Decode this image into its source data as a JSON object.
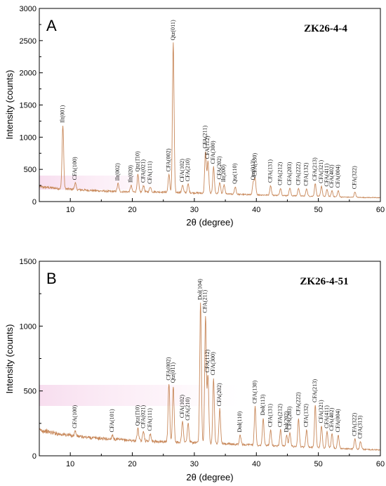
{
  "chart_data": [
    {
      "type": "line",
      "panel_label": "A",
      "sample": "ZK26-4-4",
      "xlabel": "2θ (degree)",
      "ylabel": "Intensity (counts)",
      "xlim": [
        5,
        60
      ],
      "ylim": [
        0,
        3000
      ],
      "x_ticks": [
        10,
        20,
        30,
        40,
        50,
        60
      ],
      "y_ticks": [
        0,
        500,
        1000,
        1500,
        2000,
        2500,
        3000
      ],
      "grid": false,
      "legend": "none",
      "line_color": "#c8885a",
      "baseline": [
        [
          5,
          230
        ],
        [
          8,
          205
        ],
        [
          12,
          180
        ],
        [
          16,
          160
        ],
        [
          20,
          150
        ],
        [
          24,
          150
        ],
        [
          28,
          140
        ],
        [
          32,
          130
        ],
        [
          36,
          115
        ],
        [
          40,
          105
        ],
        [
          44,
          95
        ],
        [
          48,
          85
        ],
        [
          52,
          75
        ],
        [
          56,
          65
        ],
        [
          60,
          60
        ]
      ],
      "peaks": [
        {
          "x": 8.8,
          "y": 1180,
          "label": "Ilt(001)"
        },
        {
          "x": 10.8,
          "y": 290,
          "label": "CFA(100)"
        },
        {
          "x": 17.7,
          "y": 280,
          "label": "Ilt(002)"
        },
        {
          "x": 19.8,
          "y": 250,
          "label": "Ilt(020)"
        },
        {
          "x": 20.9,
          "y": 420,
          "label": "Qtz(1̄10)"
        },
        {
          "x": 21.8,
          "y": 250,
          "label": "CFA(021)"
        },
        {
          "x": 22.9,
          "y": 230,
          "label": "CFA(111)"
        },
        {
          "x": 25.9,
          "y": 420,
          "label": "CFA(002)"
        },
        {
          "x": 26.6,
          "y": 2460,
          "label": "Qtz(011)"
        },
        {
          "x": 28.1,
          "y": 260,
          "label": "CFA(102)"
        },
        {
          "x": 29.0,
          "y": 270,
          "label": "CFA(210)"
        },
        {
          "x": 31.8,
          "y": 780,
          "label": "CFA(211)"
        },
        {
          "x": 32.2,
          "y": 620,
          "label": "CFA(112)"
        },
        {
          "x": 33.1,
          "y": 540,
          "label": "CFA(300)"
        },
        {
          "x": 34.1,
          "y": 300,
          "label": "CFA(202)"
        },
        {
          "x": 34.8,
          "y": 260,
          "label": "Ilt(200)"
        },
        {
          "x": 36.6,
          "y": 230,
          "label": "Qtz(110)"
        },
        {
          "x": 39.5,
          "y": 290,
          "label": "Qtz(012)"
        },
        {
          "x": 39.8,
          "y": 350,
          "label": "CFA(130)"
        },
        {
          "x": 42.3,
          "y": 250,
          "label": "CFA(131)"
        },
        {
          "x": 43.9,
          "y": 210,
          "label": "CFA(212)"
        },
        {
          "x": 45.4,
          "y": 210,
          "label": "CFA(203)"
        },
        {
          "x": 46.8,
          "y": 210,
          "label": "CFA(222)"
        },
        {
          "x": 48.1,
          "y": 200,
          "label": "CFA(132)"
        },
        {
          "x": 49.5,
          "y": 280,
          "label": "CFA(213)"
        },
        {
          "x": 50.5,
          "y": 240,
          "label": "CFA(321)"
        },
        {
          "x": 51.4,
          "y": 190,
          "label": "CFA(411)"
        },
        {
          "x": 52.2,
          "y": 170,
          "label": "CFA(402)"
        },
        {
          "x": 53.2,
          "y": 170,
          "label": "CFA(004)"
        },
        {
          "x": 55.9,
          "y": 150,
          "label": "CFA(322)"
        }
      ]
    },
    {
      "type": "line",
      "panel_label": "B",
      "sample": "ZK26-4-51",
      "xlabel": "2θ (degree)",
      "ylabel": "Intensity (counts)",
      "xlim": [
        5,
        60
      ],
      "ylim": [
        0,
        1500
      ],
      "x_ticks": [
        10,
        20,
        30,
        40,
        50,
        60
      ],
      "y_ticks": [
        0,
        500,
        1000,
        1500
      ],
      "grid": false,
      "legend": "none",
      "line_color": "#c8885a",
      "baseline": [
        [
          5,
          200
        ],
        [
          8,
          170
        ],
        [
          12,
          145
        ],
        [
          16,
          130
        ],
        [
          20,
          118
        ],
        [
          24,
          110
        ],
        [
          28,
          105
        ],
        [
          32,
          98
        ],
        [
          36,
          90
        ],
        [
          40,
          82
        ],
        [
          44,
          75
        ],
        [
          48,
          68
        ],
        [
          52,
          60
        ],
        [
          56,
          52
        ],
        [
          60,
          45
        ]
      ],
      "peaks": [
        {
          "x": 10.8,
          "y": 190,
          "label": "CFA(100)"
        },
        {
          "x": 16.8,
          "y": 160,
          "label": "CFA(101)"
        },
        {
          "x": 20.9,
          "y": 210,
          "label": "Qtz(1̄10)"
        },
        {
          "x": 21.8,
          "y": 190,
          "label": "CFA(021)"
        },
        {
          "x": 22.9,
          "y": 170,
          "label": "CFA(111)"
        },
        {
          "x": 25.9,
          "y": 560,
          "label": "CFA(002)"
        },
        {
          "x": 26.6,
          "y": 540,
          "label": "Qtz(011)"
        },
        {
          "x": 28.1,
          "y": 270,
          "label": "CFA(102)"
        },
        {
          "x": 29.0,
          "y": 250,
          "label": "CFA(210)"
        },
        {
          "x": 31.0,
          "y": 1180,
          "label": "Dol(104)"
        },
        {
          "x": 31.8,
          "y": 1080,
          "label": "CFA(211)"
        },
        {
          "x": 32.2,
          "y": 620,
          "label": "CFA(112)"
        },
        {
          "x": 33.1,
          "y": 600,
          "label": "CFA(300)"
        },
        {
          "x": 34.1,
          "y": 360,
          "label": "CFA(202)"
        },
        {
          "x": 37.4,
          "y": 160,
          "label": "Dol(110)"
        },
        {
          "x": 39.8,
          "y": 380,
          "label": "CFA(130)"
        },
        {
          "x": 41.1,
          "y": 290,
          "label": "Dol(113)"
        },
        {
          "x": 42.3,
          "y": 200,
          "label": "CFA(131)"
        },
        {
          "x": 43.9,
          "y": 200,
          "label": "CFA(212)"
        },
        {
          "x": 44.9,
          "y": 160,
          "label": "Dol(202)"
        },
        {
          "x": 45.4,
          "y": 180,
          "label": "CFA(203)"
        },
        {
          "x": 46.8,
          "y": 290,
          "label": "CFA(222)"
        },
        {
          "x": 48.1,
          "y": 200,
          "label": "CFA(132)"
        },
        {
          "x": 49.5,
          "y": 390,
          "label": "CFA(213)"
        },
        {
          "x": 50.5,
          "y": 230,
          "label": "CFA(321)"
        },
        {
          "x": 51.4,
          "y": 190,
          "label": "CFA(411)"
        },
        {
          "x": 52.2,
          "y": 170,
          "label": "CFA(402)"
        },
        {
          "x": 53.2,
          "y": 160,
          "label": "CFA(004)"
        },
        {
          "x": 55.9,
          "y": 130,
          "label": "CFA(322)"
        },
        {
          "x": 56.8,
          "y": 110,
          "label": "CFA(313)"
        }
      ]
    }
  ]
}
